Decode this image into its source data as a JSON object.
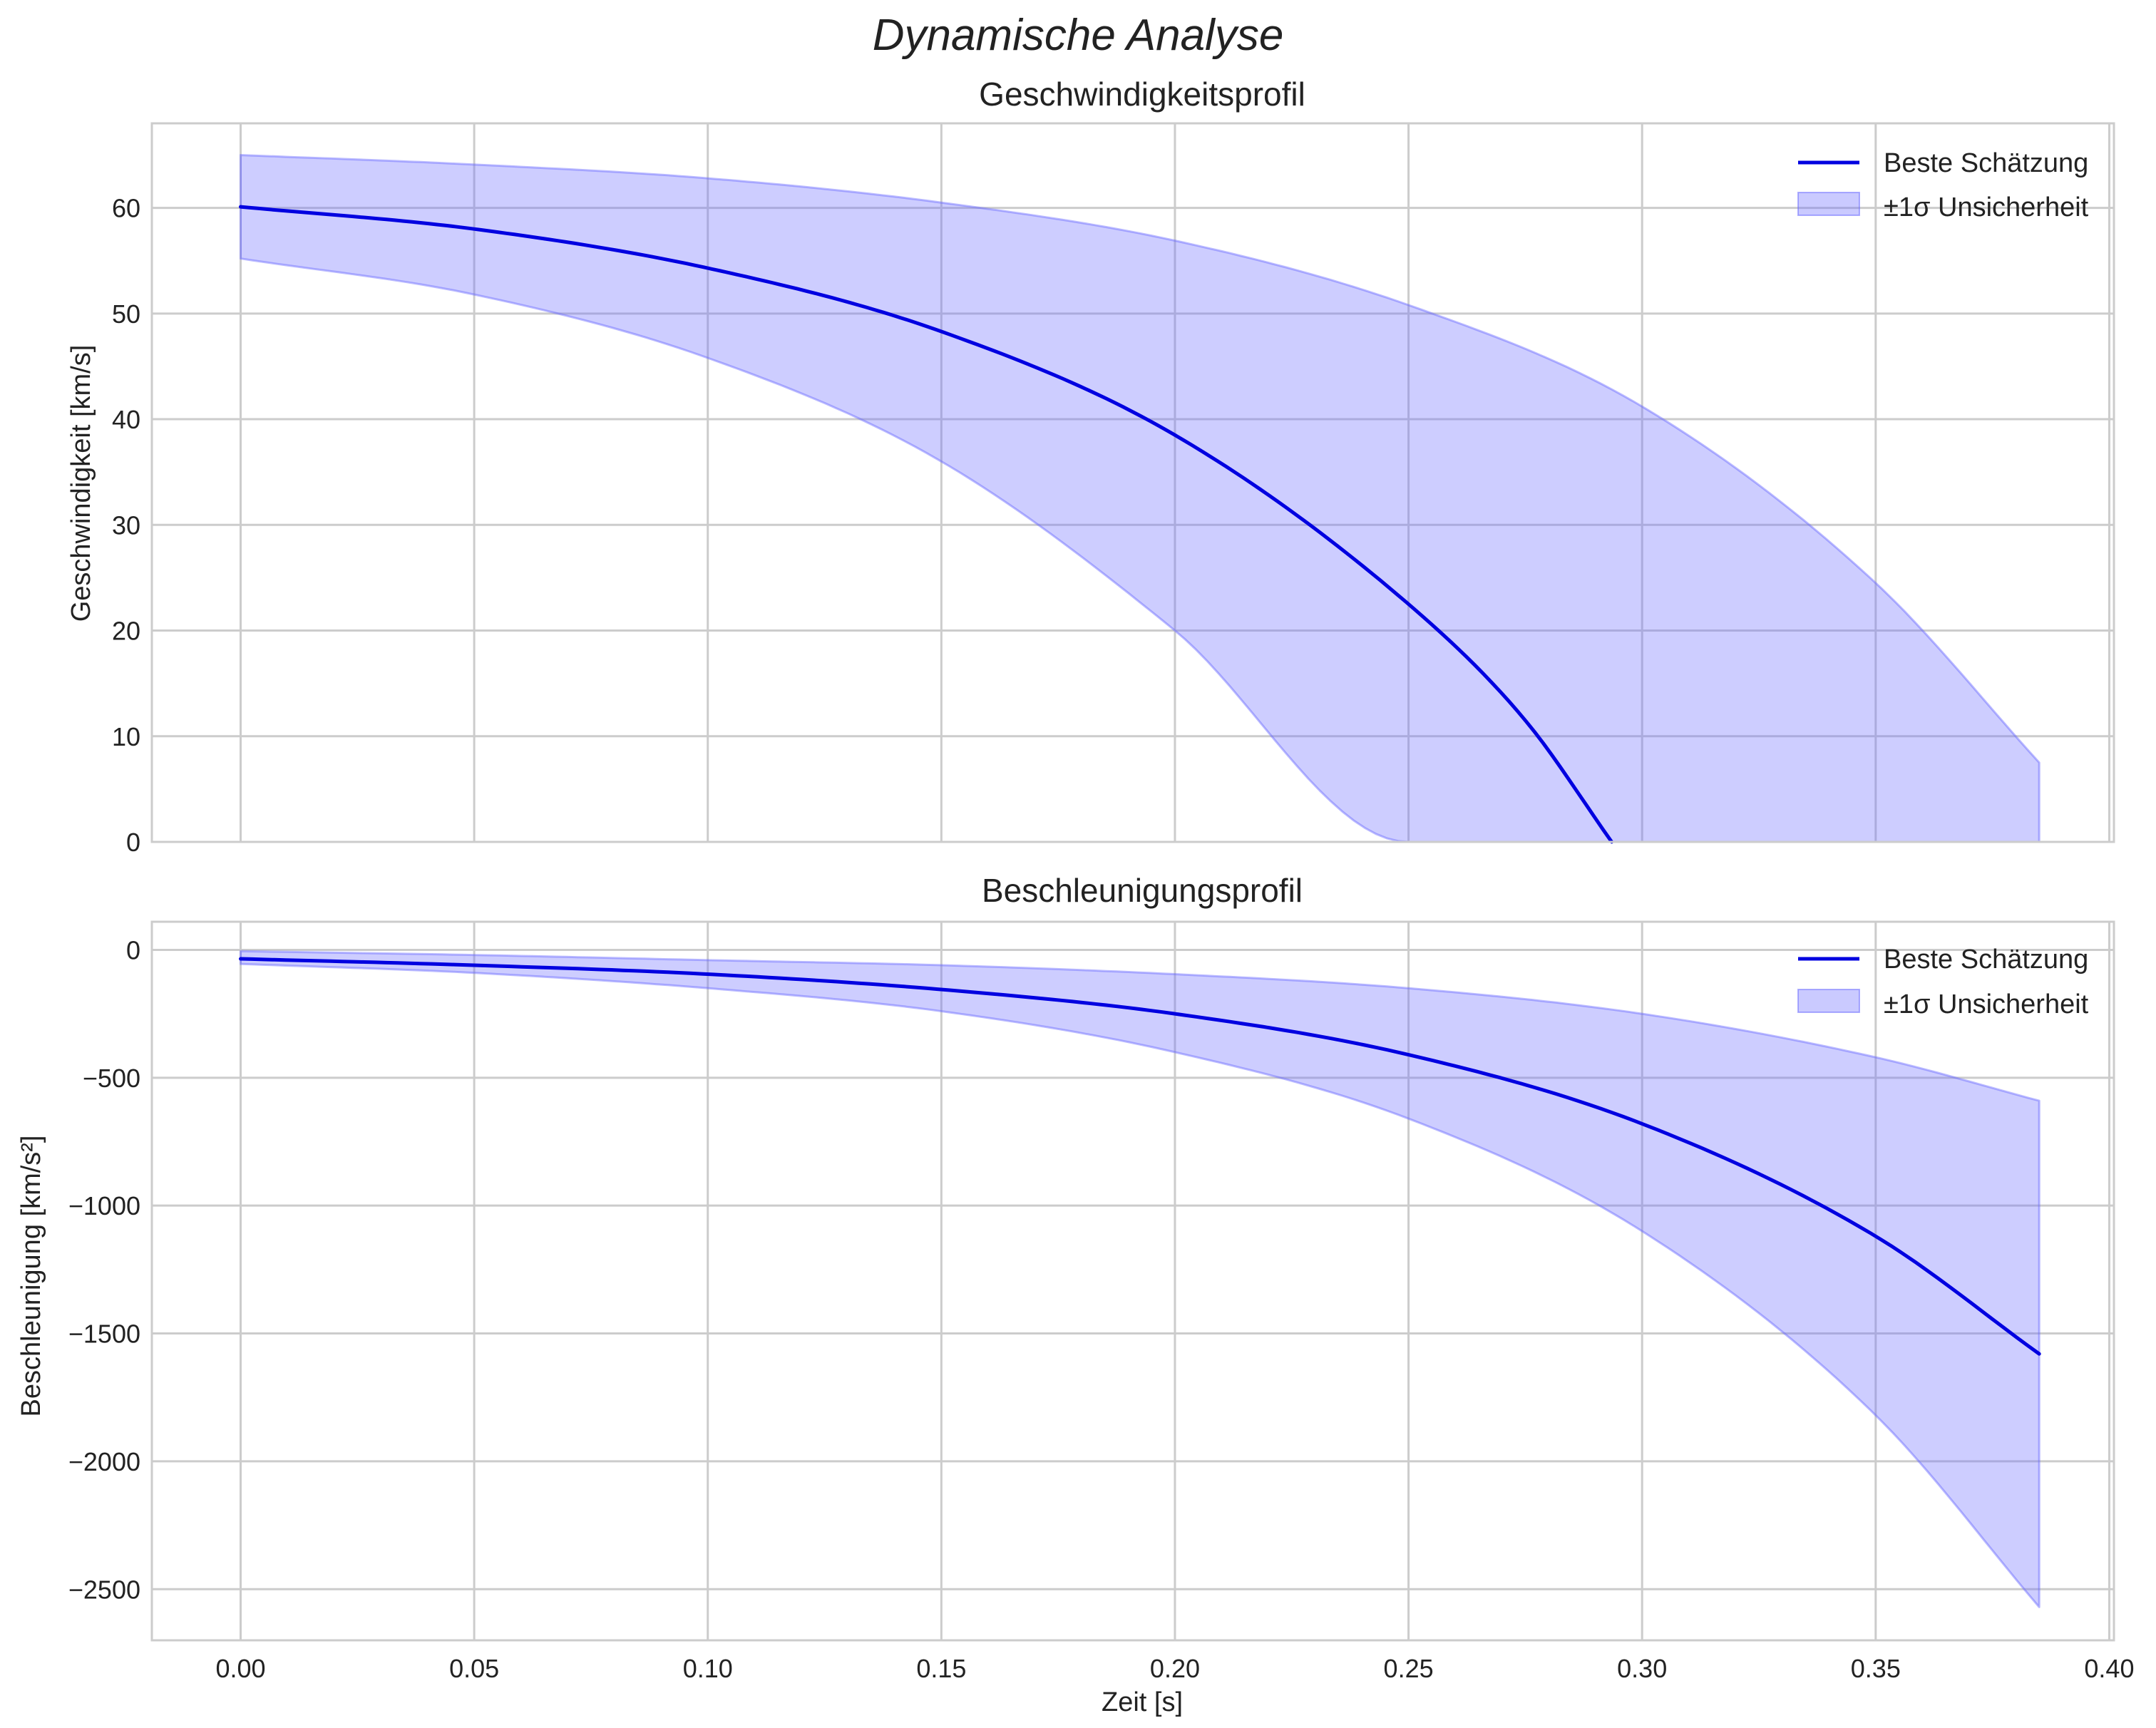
{
  "figure_title": "Dynamische Analyse",
  "colors": {
    "line": "#0000e0",
    "band_fill": "#6666ff",
    "band_edge": "#6666ff",
    "grid": "#cccccc",
    "text": "#222222"
  },
  "chart_data": [
    {
      "type": "line",
      "title": "Geschwindigkeitsprofil",
      "xlabel": "",
      "ylabel": "Geschwindigkeit [km/s]",
      "xlim": [
        -0.019,
        0.401
      ],
      "ylim": [
        0,
        68
      ],
      "xticks": [
        0.0,
        0.05,
        0.1,
        0.15,
        0.2,
        0.25,
        0.3,
        0.35,
        0.4
      ],
      "xtick_labels": [
        "0.00",
        "0.05",
        "0.10",
        "0.15",
        "0.20",
        "0.25",
        "0.30",
        "0.35",
        "0.40"
      ],
      "yticks": [
        0,
        10,
        20,
        30,
        40,
        50,
        60
      ],
      "ytick_labels": [
        "0",
        "10",
        "20",
        "30",
        "40",
        "50",
        "60"
      ],
      "grid": true,
      "legend": {
        "position": "top-right",
        "entries": [
          "Beste Schätzung",
          "±1σ Unsicherheit"
        ]
      },
      "series": [
        {
          "name": "Beste Schätzung",
          "x": [
            0.0,
            0.05,
            0.1,
            0.15,
            0.2,
            0.25,
            0.275,
            0.2935
          ],
          "values": [
            60.1,
            58.0,
            54.3,
            48.3,
            38.5,
            22.5,
            11.5,
            0
          ]
        }
      ],
      "band": {
        "name": "±1σ Unsicherheit",
        "x": [
          0.0,
          0.05,
          0.1,
          0.15,
          0.2,
          0.25,
          0.3,
          0.35,
          0.385
        ],
        "upper": [
          65.0,
          64.1,
          62.8,
          60.5,
          56.9,
          50.8,
          41.2,
          24.5,
          7.5
        ],
        "lower": [
          55.2,
          51.8,
          45.8,
          36.0,
          20.0,
          0,
          0,
          0,
          0
        ],
        "lower_zero_at": 0.24
      }
    },
    {
      "type": "line",
      "title": "Beschleunigungsprofil",
      "xlabel": "Zeit [s]",
      "ylabel": "Beschleunigung [km/s²]",
      "xlim": [
        -0.019,
        0.401
      ],
      "ylim": [
        -2700,
        110
      ],
      "xticks": [
        0.0,
        0.05,
        0.1,
        0.15,
        0.2,
        0.25,
        0.3,
        0.35,
        0.4
      ],
      "xtick_labels": [
        "0.00",
        "0.05",
        "0.10",
        "0.15",
        "0.20",
        "0.25",
        "0.30",
        "0.35",
        "0.40"
      ],
      "yticks": [
        0,
        -500,
        -1000,
        -1500,
        -2000,
        -2500
      ],
      "ytick_labels": [
        "0",
        "−500",
        "−1000",
        "−1500",
        "−2000",
        "−2500"
      ],
      "grid": true,
      "legend": {
        "position": "top-right",
        "entries": [
          "Beste Schätzung",
          "±1σ Unsicherheit"
        ]
      },
      "series": [
        {
          "name": "Beste Schätzung",
          "x": [
            0.0,
            0.05,
            0.1,
            0.15,
            0.2,
            0.25,
            0.3,
            0.35,
            0.385
          ],
          "values": [
            -35,
            -60,
            -95,
            -155,
            -250,
            -410,
            -680,
            -1120,
            -1580
          ]
        }
      ],
      "band": {
        "name": "±1σ Unsicherheit",
        "x": [
          0.0,
          0.05,
          0.1,
          0.15,
          0.2,
          0.25,
          0.3,
          0.35,
          0.385
        ],
        "upper": [
          -5,
          -20,
          -40,
          -60,
          -95,
          -150,
          -250,
          -420,
          -590
        ],
        "lower": [
          -55,
          -90,
          -150,
          -240,
          -400,
          -660,
          -1100,
          -1820,
          -2570
        ]
      }
    }
  ]
}
